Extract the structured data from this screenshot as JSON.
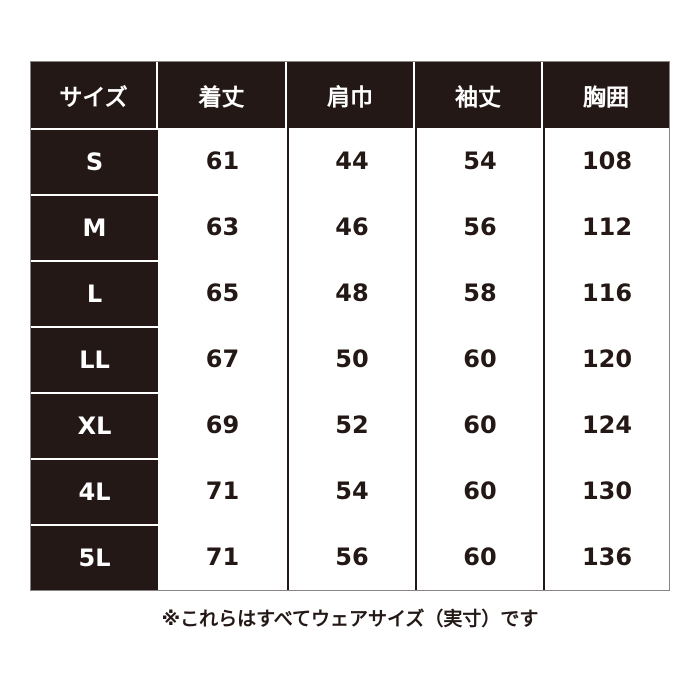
{
  "table": {
    "headers": [
      "サイズ",
      "着丈",
      "肩巾",
      "袖丈",
      "胸囲"
    ],
    "rows": [
      [
        "S",
        "61",
        "44",
        "54",
        "108"
      ],
      [
        "M",
        "63",
        "46",
        "56",
        "112"
      ],
      [
        "L",
        "65",
        "48",
        "58",
        "116"
      ],
      [
        "LL",
        "67",
        "50",
        "60",
        "120"
      ],
      [
        "XL",
        "69",
        "52",
        "60",
        "124"
      ],
      [
        "4L",
        "71",
        "54",
        "60",
        "130"
      ],
      [
        "5L",
        "71",
        "56",
        "60",
        "136"
      ]
    ]
  },
  "note": "※これらはすべてウェアサイズ（実寸）です",
  "colors": {
    "dark": "#231815",
    "light": "#ffffff"
  }
}
